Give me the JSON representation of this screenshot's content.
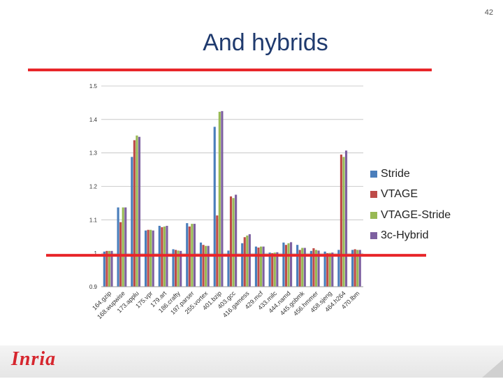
{
  "slide": {
    "page_number": "42",
    "title": "And hybrids"
  },
  "colors": {
    "title_rule": "#e8262a",
    "series": [
      "#4a7ebb",
      "#be4b48",
      "#98b954",
      "#7d60a0"
    ]
  },
  "logo": {
    "text": "Inria"
  },
  "chart_data": {
    "type": "bar",
    "title": "",
    "xlabel": "",
    "ylabel": "",
    "ylim": [
      0.9,
      1.5
    ],
    "yticks": [
      "0.9",
      "1",
      "1.1",
      "1.2",
      "1.3",
      "1.4",
      "1.5"
    ],
    "grid": true,
    "legend_position": "right",
    "baseline_marker": 1.0,
    "categories": [
      "164.gzip",
      "168.wupwise",
      "173.applu",
      "175.vpr",
      "179.art",
      "186.crafty",
      "197.parser",
      "255.vortex",
      "401.bzip",
      "403.gcc",
      "416.gamess",
      "429.mcf",
      "433.milc",
      "444.namd",
      "445.gobmk",
      "456.hmmer",
      "458.sjeng",
      "464.h264",
      "470.lbm"
    ],
    "series": [
      {
        "name": "Stride",
        "values": [
          1.005,
          1.137,
          1.288,
          1.068,
          1.082,
          1.012,
          1.09,
          1.032,
          1.378,
          1.008,
          1.03,
          1.02,
          1.002,
          1.032,
          1.025,
          1.007,
          1.005,
          1.01,
          1.01
        ]
      },
      {
        "name": "VTAGE",
        "values": [
          1.007,
          1.093,
          1.338,
          1.07,
          1.078,
          1.01,
          1.08,
          1.025,
          1.113,
          1.17,
          1.048,
          1.017,
          1.0,
          1.025,
          1.01,
          1.015,
          1.0,
          1.295,
          1.012
        ]
      },
      {
        "name": "VTAGE-Stride",
        "values": [
          1.007,
          1.137,
          1.352,
          1.07,
          1.08,
          1.008,
          1.088,
          1.022,
          1.423,
          1.165,
          1.053,
          1.02,
          1.002,
          1.03,
          1.016,
          1.01,
          1.001,
          1.288,
          1.01
        ]
      },
      {
        "name": "3c-Hybrid",
        "values": [
          1.007,
          1.137,
          1.348,
          1.068,
          1.082,
          1.007,
          1.088,
          1.022,
          1.425,
          1.175,
          1.057,
          1.02,
          1.003,
          1.033,
          1.016,
          1.008,
          1.002,
          1.307,
          1.01
        ]
      }
    ]
  }
}
